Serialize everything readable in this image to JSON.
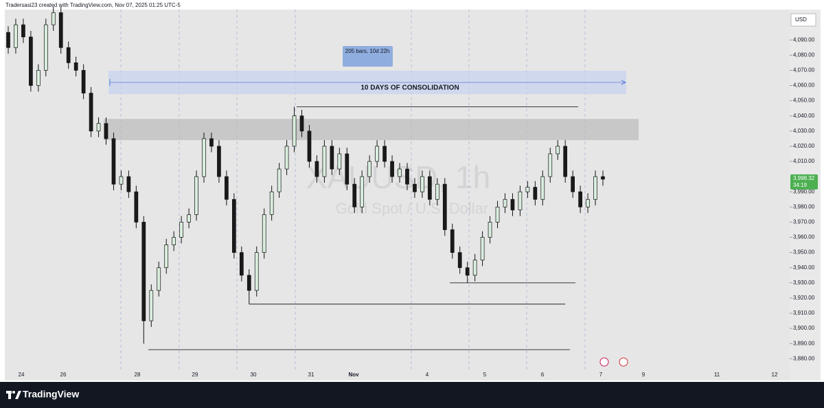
{
  "chart_data": {
    "type": "candlestick",
    "header": "Tradersasi23 created with TradingView.com, Nov 07, 2025 01:25 UTC-5",
    "title": "XAUUSD, 1h",
    "subtitle": "Gold Spot / U.S. Dollar",
    "currency": "USD",
    "brand": "TradingView",
    "up_color": "#d9eede",
    "down_color": "#1a1a1a",
    "open": [
      4095,
      4085,
      4100,
      4092,
      4060,
      4070,
      4100,
      4108,
      4085,
      4075,
      4070,
      4055,
      4030,
      4035,
      4025,
      3995,
      4000,
      3990,
      3970,
      3905,
      3925,
      3940,
      3955,
      3960,
      3970,
      3975,
      4000,
      4025,
      4020,
      4000,
      3985,
      3950,
      3935,
      3925,
      3950,
      3975,
      3990,
      4005,
      4020,
      4040,
      4030,
      4010,
      4000,
      4020,
      4005,
      4015,
      3995,
      3980,
      4000,
      4010,
      4020,
      4010,
      4000,
      4005,
      3995,
      3990,
      4000,
      3985,
      3995,
      3965,
      3950,
      3940,
      3935,
      3945,
      3960,
      3970,
      3980,
      3985,
      3978,
      3990,
      3993,
      3985,
      4000,
      4015,
      4020,
      4000,
      3990,
      3980,
      3985,
      4000
    ],
    "high": [
      4099,
      4104,
      4104,
      4096,
      4074,
      4104,
      4112,
      4112,
      4089,
      4079,
      4074,
      4059,
      4039,
      4039,
      4029,
      4004,
      4004,
      3994,
      3974,
      3929,
      3944,
      3959,
      3964,
      3974,
      3979,
      4004,
      4029,
      4029,
      4024,
      4004,
      3989,
      3954,
      3939,
      3954,
      3979,
      3994,
      4009,
      4024,
      4046,
      4044,
      4034,
      4014,
      4024,
      4024,
      4019,
      4019,
      3999,
      4004,
      4014,
      4024,
      4024,
      4014,
      4009,
      4009,
      3999,
      4004,
      4004,
      3999,
      3999,
      3969,
      3954,
      3944,
      3949,
      3964,
      3974,
      3984,
      3989,
      3989,
      3994,
      3997,
      3997,
      4004,
      4019,
      4024,
      4024,
      4004,
      3994,
      3989,
      4004,
      4004
    ],
    "low": [
      4081,
      4081,
      4088,
      4056,
      4056,
      4066,
      4096,
      4081,
      4071,
      4066,
      4051,
      4026,
      4026,
      4021,
      3991,
      3991,
      3986,
      3966,
      3890,
      3901,
      3921,
      3936,
      3951,
      3956,
      3966,
      3971,
      3996,
      4016,
      3996,
      3981,
      3946,
      3931,
      3916,
      3921,
      3946,
      3971,
      3986,
      4001,
      4016,
      4026,
      4006,
      3996,
      3996,
      4001,
      4001,
      3991,
      3976,
      3976,
      3996,
      4006,
      4006,
      3996,
      3996,
      3991,
      3986,
      3986,
      3981,
      3981,
      3961,
      3946,
      3936,
      3930,
      3931,
      3941,
      3956,
      3966,
      3976,
      3974,
      3974,
      3986,
      3981,
      3981,
      3996,
      4011,
      3996,
      3986,
      3976,
      3976,
      3981,
      3994
    ],
    "close": [
      4085,
      4100,
      4092,
      4060,
      4070,
      4100,
      4108,
      4085,
      4075,
      4070,
      4055,
      4030,
      4035,
      4025,
      3995,
      4000,
      3990,
      3970,
      3905,
      3925,
      3940,
      3955,
      3960,
      3970,
      3975,
      4000,
      4025,
      4020,
      4000,
      3985,
      3950,
      3935,
      3925,
      3950,
      3975,
      3990,
      4005,
      4020,
      4040,
      4030,
      4010,
      4000,
      4020,
      4005,
      4015,
      3995,
      3980,
      4000,
      4010,
      4020,
      4010,
      4000,
      4005,
      3995,
      3990,
      4000,
      3985,
      3995,
      3965,
      3950,
      3940,
      3935,
      3945,
      3960,
      3970,
      3980,
      3985,
      3978,
      3990,
      3993,
      3985,
      4000,
      4015,
      4020,
      4000,
      3990,
      3980,
      3985,
      4000,
      3998.32
    ],
    "ylim": [
      3872,
      4110
    ],
    "yticks": [
      {
        "value": 4090,
        "label": "4,090.00"
      },
      {
        "value": 4080,
        "label": "4,080.00"
      },
      {
        "value": 4070,
        "label": "4,070.00"
      },
      {
        "value": 4060,
        "label": "4,060.00"
      },
      {
        "value": 4050,
        "label": "4,050.00"
      },
      {
        "value": 4040,
        "label": "4,040.00"
      },
      {
        "value": 4030,
        "label": "4,030.00"
      },
      {
        "value": 4020,
        "label": "4,020.00"
      },
      {
        "value": 4010,
        "label": "4,010.00"
      },
      {
        "value": 3990,
        "label": "3,990.00"
      },
      {
        "value": 3980,
        "label": "3,980.00"
      },
      {
        "value": 3970,
        "label": "3,970.00"
      },
      {
        "value": 3960,
        "label": "3,960.00"
      },
      {
        "value": 3950,
        "label": "3,950.00"
      },
      {
        "value": 3940,
        "label": "3,940.00"
      },
      {
        "value": 3930,
        "label": "3,930.00"
      },
      {
        "value": 3920,
        "label": "3,920.00"
      },
      {
        "value": 3910,
        "label": "3,910.00"
      },
      {
        "value": 3900,
        "label": "3,900.00"
      },
      {
        "value": 3890,
        "label": "3,890.00"
      },
      {
        "value": 3880,
        "label": "3,880.00"
      }
    ],
    "x_labels": [
      "24",
      "26",
      "28",
      "29",
      "30",
      "31",
      "Nov",
      "4",
      "5",
      "6",
      "7",
      "9",
      "11",
      "12"
    ],
    "last_price": {
      "value": 3998.32,
      "label": "3,998.32"
    },
    "countdown": "34:19",
    "annotations": [
      "205 bars, 10d 22h",
      "10 DAYS OF CONSOLIDATION"
    ],
    "zone": [
      4024,
      4038
    ],
    "levels": [
      4046,
      3930,
      3916,
      3886
    ]
  }
}
